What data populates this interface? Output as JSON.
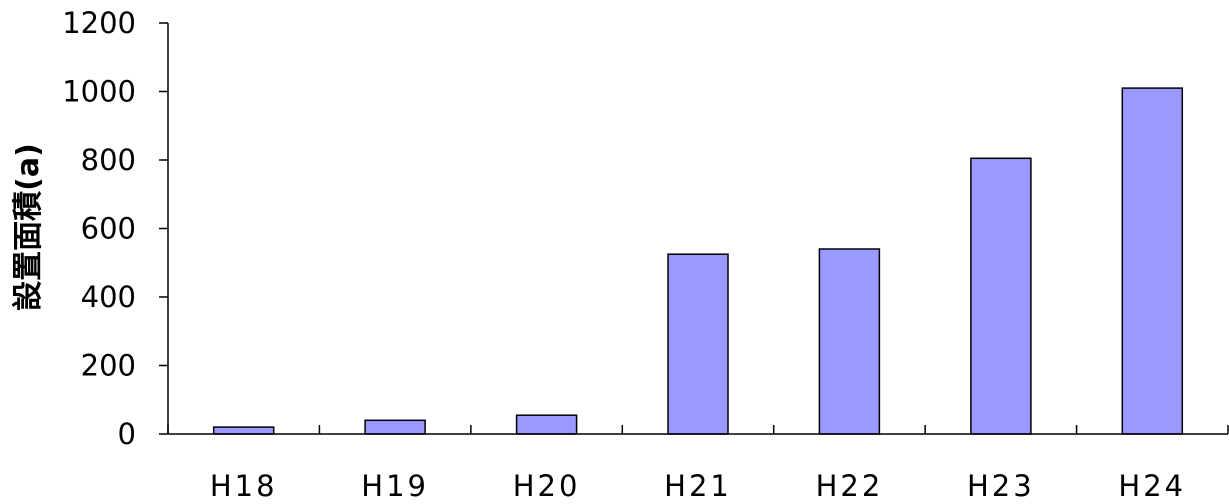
{
  "chart_data": {
    "type": "bar",
    "categories": [
      "H18",
      "H19",
      "H20",
      "H21",
      "H22",
      "H23",
      "H24"
    ],
    "values": [
      20,
      40,
      55,
      525,
      540,
      805,
      1010
    ],
    "title": "",
    "xlabel": "",
    "ylabel": "設置面積(a)",
    "ylim": [
      0,
      1200
    ],
    "yticks": [
      "0",
      "200",
      "400",
      "600",
      "800",
      "1000",
      "1200"
    ],
    "grid": false,
    "legend": "none",
    "colors": {
      "bar_fill": "#9999ff",
      "bar_stroke": "#000000",
      "axis": "#000000"
    }
  }
}
